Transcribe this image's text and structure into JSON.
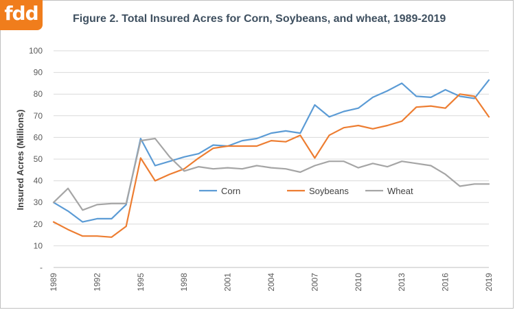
{
  "logo": {
    "text": "fdd",
    "color": "#f07d1c"
  },
  "chart_data": {
    "type": "line",
    "title": "Figure 2. Total Insured Acres for Corn, Soybeans, and wheat, 1989-2019",
    "xlabel": "",
    "ylabel": "Insured Acres (Millions)",
    "ylim": [
      0,
      100
    ],
    "yticks": [
      "-",
      "10",
      "20",
      "30",
      "40",
      "50",
      "60",
      "70",
      "80",
      "90",
      "100"
    ],
    "xticks": [
      "1989",
      "1992",
      "1995",
      "1998",
      "2001",
      "2004",
      "2007",
      "2010",
      "2013",
      "2016",
      "2019"
    ],
    "x": [
      1989,
      1990,
      1991,
      1992,
      1993,
      1994,
      1995,
      1996,
      1997,
      1998,
      1999,
      2000,
      2001,
      2002,
      2003,
      2004,
      2005,
      2006,
      2007,
      2008,
      2009,
      2010,
      2011,
      2012,
      2013,
      2014,
      2015,
      2016,
      2017,
      2018,
      2019
    ],
    "grid": "horizontal",
    "legend": "center",
    "series": [
      {
        "name": "Corn",
        "color": "#5b9bd5",
        "values": [
          30,
          26,
          21,
          22.5,
          22.5,
          29,
          59.5,
          47,
          49,
          51,
          52.5,
          56.5,
          56,
          58.5,
          59.5,
          62,
          63,
          62,
          75,
          69.5,
          72,
          73.5,
          78.5,
          81.5,
          85,
          79,
          78.5,
          82,
          79,
          78,
          86.5
        ]
      },
      {
        "name": "Soybeans",
        "color": "#ed7d31",
        "values": [
          21,
          17.5,
          14.5,
          14.5,
          14,
          19,
          50.5,
          40,
          43,
          45.5,
          50.5,
          55,
          56,
          56,
          56,
          58.5,
          58,
          61,
          50.5,
          61,
          64.5,
          65.5,
          64,
          65.5,
          67.5,
          74,
          74.5,
          73.5,
          80,
          79,
          69.5
        ]
      },
      {
        "name": "Wheat",
        "color": "#a5a5a5",
        "values": [
          30,
          36.5,
          26.5,
          29,
          29.5,
          29.5,
          58.5,
          59.5,
          51,
          44.5,
          46.5,
          45.5,
          46,
          45.5,
          47,
          46,
          45.5,
          44,
          47,
          49,
          49,
          46,
          48,
          46.5,
          49,
          48,
          47,
          43,
          37.5,
          38.5,
          38.5
        ]
      }
    ]
  }
}
